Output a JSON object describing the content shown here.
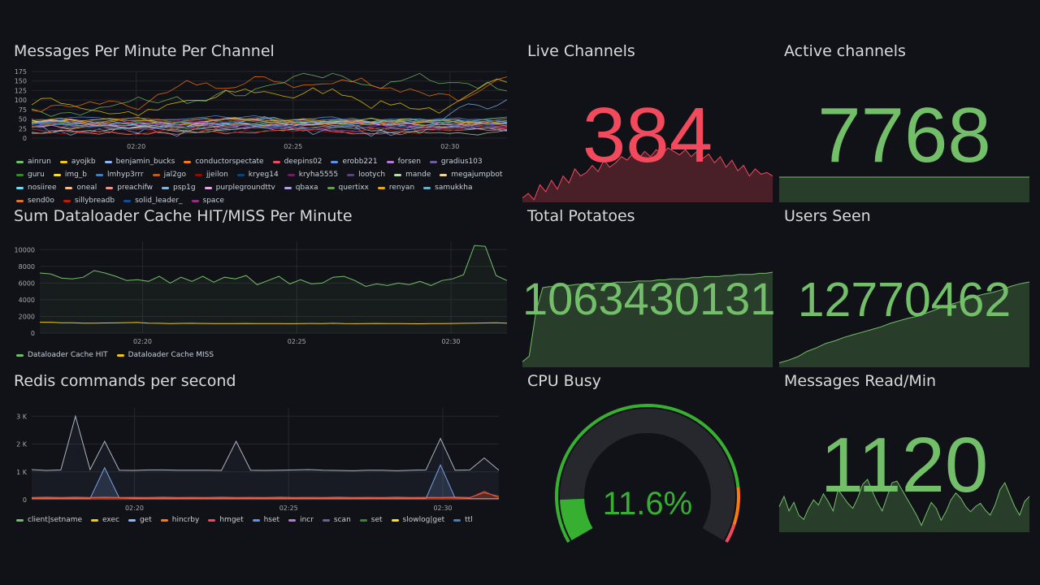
{
  "panels": {
    "messages": {
      "title": "Messages Per Minute Per Channel",
      "legend": [
        {
          "label": "ainrun",
          "color": "#73bf69"
        },
        {
          "label": "ayojkb",
          "color": "#f2cc0c"
        },
        {
          "label": "benjamin_bucks",
          "color": "#8ab8ff"
        },
        {
          "label": "conductorspectate",
          "color": "#ff780a"
        },
        {
          "label": "deepins02",
          "color": "#f2495c"
        },
        {
          "label": "erobb221",
          "color": "#5794f2"
        },
        {
          "label": "forsen",
          "color": "#b877d9"
        },
        {
          "label": "gradius103",
          "color": "#705da0"
        },
        {
          "label": "guru",
          "color": "#37872d"
        },
        {
          "label": "img_b",
          "color": "#fade2a"
        },
        {
          "label": "lmhyp3rrr",
          "color": "#447ebc"
        },
        {
          "label": "jal2go",
          "color": "#c15c17"
        },
        {
          "label": "jjeilon",
          "color": "#890f02"
        },
        {
          "label": "kryeg14",
          "color": "#0a437c"
        },
        {
          "label": "kryha5555",
          "color": "#6d1f62"
        },
        {
          "label": "lootych",
          "color": "#584477"
        },
        {
          "label": "mande",
          "color": "#b7dbab"
        },
        {
          "label": "megajumpbot",
          "color": "#f4d598"
        },
        {
          "label": "nosiiree",
          "color": "#70dbed"
        },
        {
          "label": "oneal",
          "color": "#f9ba8f"
        },
        {
          "label": "preachifw",
          "color": "#f29191"
        },
        {
          "label": "psp1g",
          "color": "#82b5d8"
        },
        {
          "label": "purplegroundttv",
          "color": "#e5a8e2"
        },
        {
          "label": "qbaxa",
          "color": "#aea2e0"
        },
        {
          "label": "quertixx",
          "color": "#629e51"
        },
        {
          "label": "renyan",
          "color": "#e5ac0e"
        },
        {
          "label": "samukkha",
          "color": "#64b0c8"
        },
        {
          "label": "send0o",
          "color": "#e0752d"
        },
        {
          "label": "sillybreadb",
          "color": "#bf1b00"
        },
        {
          "label": "solid_leader_",
          "color": "#0a50a1"
        },
        {
          "label": "space",
          "color": "#962d82"
        }
      ]
    },
    "dataloader": {
      "title": "Sum Dataloader Cache HIT/MISS Per Minute",
      "legend": [
        {
          "label": "Dataloader Cache HIT",
          "color": "#73bf69"
        },
        {
          "label": "Dataloader Cache MISS",
          "color": "#f2cc0c"
        }
      ]
    },
    "redis": {
      "title": "Redis commands per second",
      "legend": [
        {
          "label": "client|setname",
          "color": "#73bf69"
        },
        {
          "label": "exec",
          "color": "#f2cc0c"
        },
        {
          "label": "get",
          "color": "#8ab8ff"
        },
        {
          "label": "hincrby",
          "color": "#ff780a"
        },
        {
          "label": "hmget",
          "color": "#f2495c"
        },
        {
          "label": "hset",
          "color": "#5794f2"
        },
        {
          "label": "incr",
          "color": "#b877d9"
        },
        {
          "label": "scan",
          "color": "#705da0"
        },
        {
          "label": "set",
          "color": "#37872d"
        },
        {
          "label": "slowlog|get",
          "color": "#fade2a"
        },
        {
          "label": "ttl",
          "color": "#447ebc"
        }
      ]
    },
    "live_channels": {
      "title": "Live Channels",
      "value": "384",
      "color": "#f2495c"
    },
    "active_channels": {
      "title": "Active channels",
      "value": "7768",
      "color": "#73bf69"
    },
    "total_potatoes": {
      "title": "Total Potatoes",
      "value": "1063430131",
      "color": "#73bf69"
    },
    "users_seen": {
      "title": "Users Seen",
      "value": "12770462",
      "color": "#73bf69"
    },
    "cpu_busy": {
      "title": "CPU Busy",
      "value": "11.6%",
      "percent": 11.6,
      "color": "#37b032"
    },
    "messages_read": {
      "title": "Messages Read/Min",
      "value": "1120",
      "color": "#73bf69"
    }
  },
  "chart_data": [
    {
      "type": "line",
      "title": "Messages Per Minute Per Channel",
      "x_ticks": [
        "02:20",
        "02:25",
        "02:30"
      ],
      "y_ticks": [
        0,
        25,
        50,
        75,
        100,
        125,
        150,
        175
      ],
      "ylim": [
        0,
        175
      ]
    },
    {
      "type": "line",
      "title": "Sum Dataloader Cache HIT/MISS Per Minute",
      "x_ticks": [
        "02:20",
        "02:25",
        "02:30"
      ],
      "y_ticks": [
        0,
        2000,
        4000,
        6000,
        8000,
        10000
      ],
      "ylim": [
        0,
        11000
      ],
      "series": [
        {
          "name": "Dataloader Cache HIT",
          "values": [
            7200,
            7100,
            6600,
            6500,
            6700,
            7500,
            7200,
            6800,
            6300,
            6400,
            6200,
            6800,
            6000,
            6700,
            6200,
            6800,
            6100,
            6700,
            6500,
            6900,
            5800,
            6300,
            6800,
            5900,
            6400,
            5900,
            6000,
            6700,
            6800,
            6300,
            5600,
            5900,
            5700,
            6000,
            5800,
            6200,
            5700,
            6300,
            6500,
            7000,
            10500,
            10400,
            6900,
            6300
          ]
        },
        {
          "name": "Dataloader Cache MISS",
          "values": [
            1300,
            1300,
            1250,
            1250,
            1200,
            1200,
            1220,
            1230,
            1260,
            1280,
            1200,
            1180,
            1150,
            1170,
            1180,
            1160,
            1140,
            1150,
            1150,
            1160,
            1140,
            1150,
            1140,
            1130,
            1150,
            1160,
            1150,
            1180,
            1140,
            1130,
            1150,
            1160,
            1140,
            1150,
            1130,
            1120,
            1140,
            1150,
            1160,
            1180,
            1200,
            1220,
            1250,
            1200
          ]
        }
      ]
    },
    {
      "type": "line",
      "title": "Redis commands per second",
      "x_ticks": [
        "02:20",
        "02:25",
        "02:30"
      ],
      "y_ticks": [
        "0",
        "1 K",
        "2 K",
        "3 K"
      ],
      "ylim": [
        0,
        3300
      ],
      "series": [
        {
          "name": "client|setname",
          "values": [
            1080,
            1050,
            1070,
            3000,
            1080,
            2100,
            1060,
            1050,
            1070,
            1070,
            1060,
            1060,
            1060,
            1050,
            2100,
            1060,
            1050,
            1060,
            1070,
            1080,
            1060,
            1050,
            1040,
            1060,
            1060,
            1040,
            1060,
            1070,
            2200,
            1060,
            1070,
            1500,
            1060
          ]
        },
        {
          "name": "get",
          "values": [
            40,
            40,
            40,
            40,
            40,
            1150,
            60,
            40,
            40,
            40,
            40,
            40,
            40,
            40,
            40,
            40,
            40,
            40,
            40,
            40,
            40,
            40,
            40,
            40,
            40,
            40,
            40,
            40,
            1250,
            60,
            40,
            40,
            40
          ]
        },
        {
          "name": "hincrby",
          "values": [
            80,
            90,
            80,
            90,
            80,
            90,
            80,
            85,
            80,
            90,
            80,
            85,
            80,
            90,
            80,
            85,
            80,
            90,
            80,
            85,
            80,
            90,
            80,
            85,
            80,
            90,
            80,
            85,
            80,
            90,
            80,
            250,
            120
          ]
        },
        {
          "name": "hmget",
          "values": [
            60,
            60,
            60,
            60,
            60,
            60,
            60,
            60,
            60,
            60,
            60,
            60,
            60,
            60,
            60,
            60,
            60,
            60,
            60,
            60,
            60,
            60,
            60,
            60,
            60,
            60,
            60,
            60,
            60,
            60,
            60,
            300,
            60
          ]
        }
      ]
    },
    {
      "type": "area",
      "title": "Live Channels",
      "values": [
        5,
        10,
        3,
        20,
        12,
        25,
        15,
        30,
        22,
        38,
        30,
        34,
        42,
        35,
        48,
        40,
        45,
        52,
        48,
        56,
        50,
        58,
        52,
        60,
        55,
        62,
        58,
        54,
        60,
        52,
        58,
        50,
        55,
        45,
        52,
        40,
        48,
        36,
        42,
        30,
        38,
        32,
        34,
        30
      ]
    },
    {
      "type": "area",
      "title": "Active channels",
      "values": [
        100,
        100
      ]
    },
    {
      "type": "area",
      "title": "Total Potatoes",
      "values": [
        5,
        10,
        50,
        72,
        73,
        73,
        74,
        74,
        75,
        75,
        75,
        76,
        76,
        76,
        77,
        77,
        77,
        78,
        78,
        78,
        79,
        79,
        80,
        80,
        80,
        81,
        81,
        82,
        82,
        82,
        83,
        83,
        84,
        84,
        84,
        85,
        85,
        86
      ]
    },
    {
      "type": "area",
      "title": "Users Seen",
      "values": [
        5,
        8,
        12,
        18,
        22,
        27,
        30,
        34,
        37,
        40,
        43,
        46,
        50,
        53,
        56,
        58,
        62,
        66,
        70,
        73,
        76,
        80,
        83,
        85,
        88,
        92,
        95,
        97
      ]
    },
    {
      "type": "gauge",
      "title": "CPU Busy",
      "value": 11.6,
      "min": 0,
      "max": 100,
      "thresholds": [
        {
          "value": 0,
          "color": "#37b032"
        },
        {
          "value": 85,
          "color": "#ff780a"
        },
        {
          "value": 95,
          "color": "#f2495c"
        }
      ]
    },
    {
      "type": "area",
      "title": "Messages Read/Min",
      "values": [
        30,
        42,
        25,
        35,
        20,
        15,
        28,
        38,
        32,
        45,
        36,
        25,
        50,
        42,
        34,
        28,
        40,
        56,
        62,
        48,
        35,
        25,
        42,
        58,
        60,
        50,
        40,
        30,
        20,
        8,
        22,
        35,
        28,
        14,
        24,
        38,
        46,
        40,
        30,
        24,
        30,
        34,
        26,
        20,
        32,
        50,
        58,
        44,
        30,
        20,
        36,
        42
      ]
    }
  ]
}
